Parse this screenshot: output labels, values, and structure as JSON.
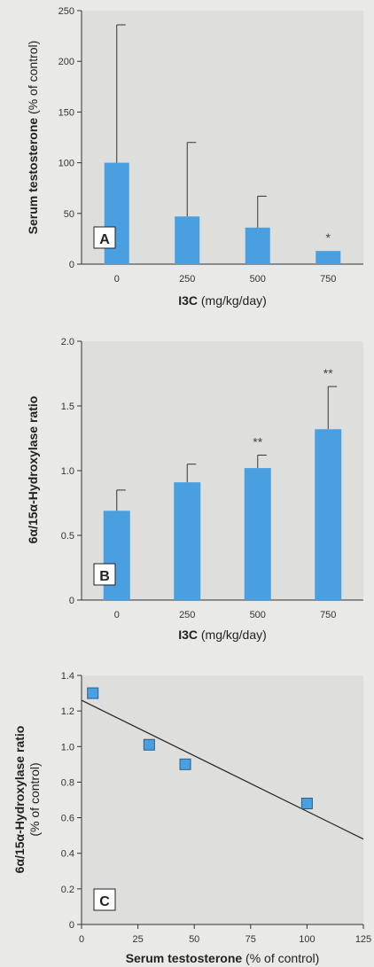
{
  "chart_data": [
    {
      "type": "bar",
      "panel_label": "A",
      "categories": [
        "0",
        "250",
        "500",
        "750"
      ],
      "values": [
        100,
        47,
        36,
        13
      ],
      "error_upper": [
        236,
        120,
        67,
        null
      ],
      "significance": [
        "",
        "",
        "",
        "*"
      ],
      "ylabel_bold": "Serum testosterone",
      "ylabel_rest": " (% of control)",
      "xlabel_bold": "I3C",
      "xlabel_rest": " (mg/kg/day)",
      "ylim": [
        0,
        250
      ],
      "yticks": [
        "0",
        "50",
        "100",
        "150",
        "200",
        "250"
      ],
      "grid": false
    },
    {
      "type": "bar",
      "panel_label": "B",
      "categories": [
        "0",
        "250",
        "500",
        "750"
      ],
      "values": [
        0.69,
        0.91,
        1.02,
        1.32
      ],
      "error_upper": [
        0.85,
        1.05,
        1.12,
        1.65
      ],
      "significance": [
        "",
        "",
        "**",
        "**"
      ],
      "ylabel_bold": "6α/15α-Hydroxylase ratio",
      "ylabel_rest": "",
      "xlabel_bold": "I3C",
      "xlabel_rest": " (mg/kg/day)",
      "ylim": [
        0,
        2.0
      ],
      "yticks": [
        "0",
        "0.5",
        "1.0",
        "1.5",
        "2.0"
      ],
      "grid": false
    },
    {
      "type": "scatter",
      "panel_label": "C",
      "points": [
        {
          "x": 5,
          "y": 1.3
        },
        {
          "x": 30,
          "y": 1.01
        },
        {
          "x": 46,
          "y": 0.9
        },
        {
          "x": 100,
          "y": 0.68
        }
      ],
      "trendline": [
        [
          0,
          1.26
        ],
        [
          125,
          0.48
        ]
      ],
      "ylabel_bold": "6α/15α-Hydroxylase ratio",
      "ylabel_rest": "(% of control)",
      "xlabel_bold": "Serum testosterone",
      "xlabel_rest": " (% of control)",
      "xlim": [
        0,
        125
      ],
      "ylim": [
        0,
        1.4
      ],
      "xticks": [
        "0",
        "25",
        "50",
        "75",
        "100",
        "125"
      ],
      "yticks": [
        "0",
        "0.2",
        "0.4",
        "0.6",
        "0.8",
        "1.0",
        "1.2",
        "1.4"
      ],
      "grid": false
    }
  ],
  "colors": {
    "bar": "#4a9fe0",
    "marker": "#4a9fe0",
    "plot_bg": "#dededc",
    "axis": "#333333",
    "label_box": "#ffffff"
  }
}
